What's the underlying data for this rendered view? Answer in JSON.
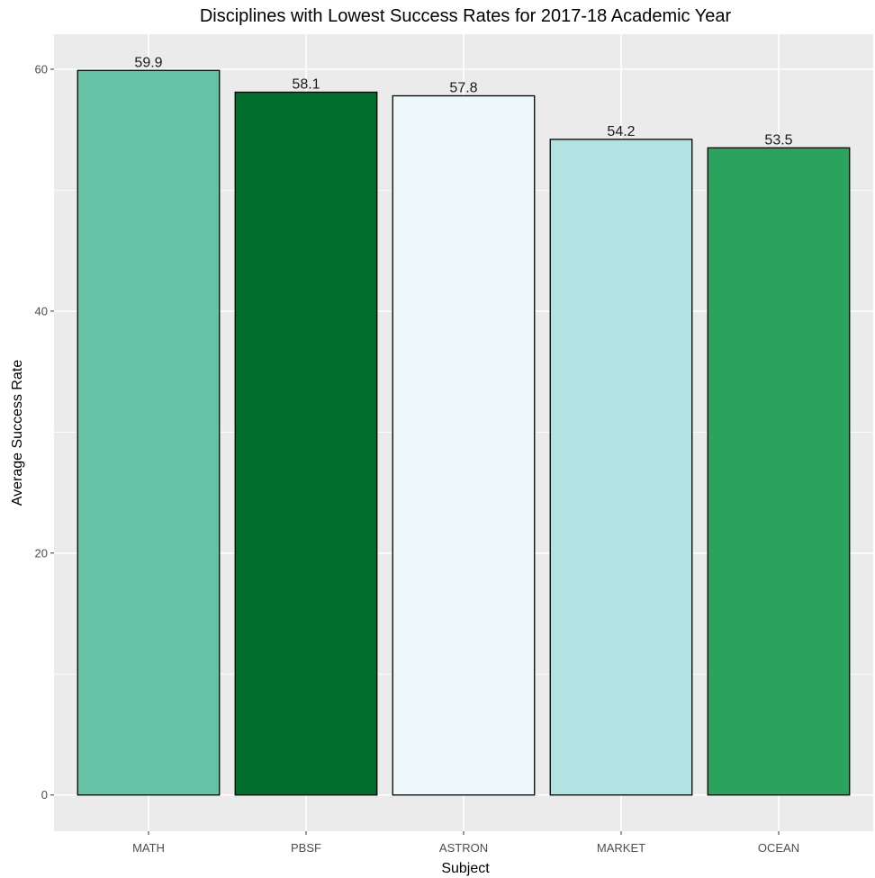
{
  "chart_data": {
    "type": "bar",
    "title": "Disciplines with Lowest Success Rates for 2017-18 Academic Year",
    "xlabel": "Subject",
    "ylabel": "Average Success Rate",
    "categories": [
      "MATH",
      "PBSF",
      "ASTRON",
      "MARKET",
      "OCEAN"
    ],
    "values": [
      59.9,
      58.1,
      57.8,
      54.2,
      53.5
    ],
    "data_labels": [
      "59.9",
      "58.1",
      "57.8",
      "54.2",
      "53.5"
    ],
    "bar_colors": [
      "#66c2a4",
      "#006d2c",
      "#edf8fb",
      "#b2e2e2",
      "#2ca25f"
    ],
    "ylim": [
      -2.995,
      62.895
    ],
    "yticks": [
      0,
      20,
      40,
      60
    ],
    "ytick_labels": [
      "0",
      "20",
      "40",
      "60"
    ],
    "grid": true,
    "legend": "none",
    "panel_background": "#ebebeb",
    "grid_color": "#ffffff",
    "bar_outline": "#000000"
  }
}
